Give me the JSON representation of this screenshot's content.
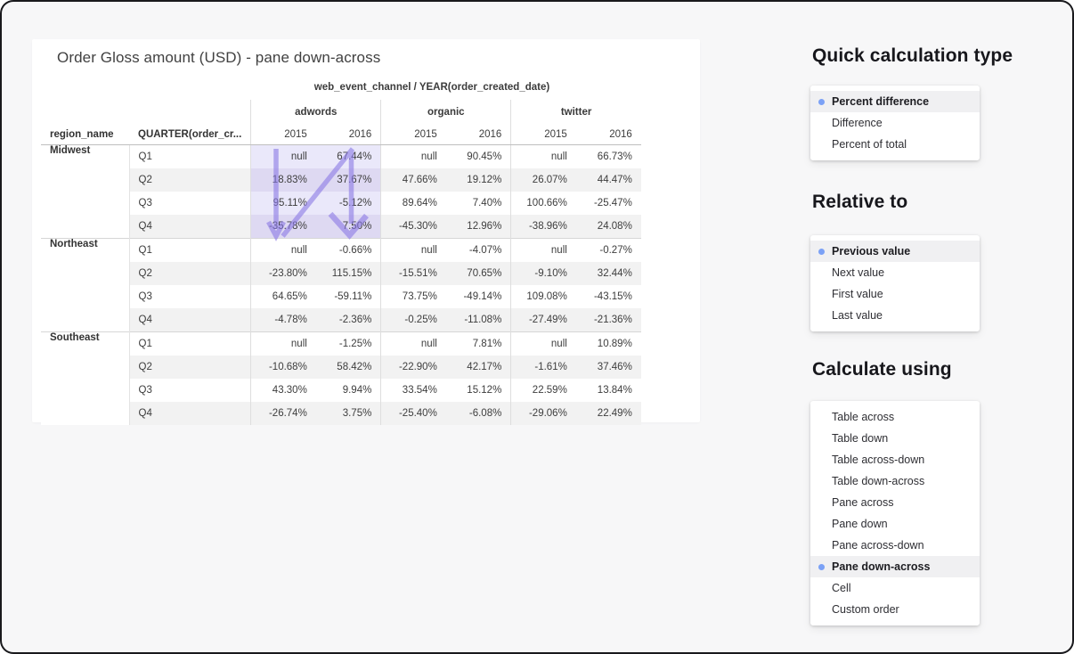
{
  "report": {
    "title": "Order Gloss amount (USD) - pane down-across"
  },
  "table": {
    "pivot_label": "web_event_channel / YEAR(order_created_date)",
    "row_headers": [
      "region_name",
      "QUARTER(order_cr..."
    ],
    "channels": [
      "adwords",
      "organic",
      "twitter"
    ],
    "years": [
      "2015",
      "2016"
    ],
    "rows": [
      {
        "region": "Midwest",
        "quarter": "Q1",
        "values": [
          "null",
          "67.44%",
          "null",
          "90.45%",
          "null",
          "66.73%"
        ]
      },
      {
        "region": "",
        "quarter": "Q2",
        "values": [
          "18.83%",
          "37.67%",
          "47.66%",
          "19.12%",
          "26.07%",
          "44.47%"
        ]
      },
      {
        "region": "",
        "quarter": "Q3",
        "values": [
          "95.11%",
          "-5.12%",
          "89.64%",
          "7.40%",
          "100.66%",
          "-25.47%"
        ]
      },
      {
        "region": "",
        "quarter": "Q4",
        "values": [
          "-35.78%",
          "7.50%",
          "-45.30%",
          "12.96%",
          "-38.96%",
          "24.08%"
        ]
      },
      {
        "region": "Northeast",
        "quarter": "Q1",
        "values": [
          "null",
          "-0.66%",
          "null",
          "-4.07%",
          "null",
          "-0.27%"
        ]
      },
      {
        "region": "",
        "quarter": "Q2",
        "values": [
          "-23.80%",
          "115.15%",
          "-15.51%",
          "70.65%",
          "-9.10%",
          "32.44%"
        ]
      },
      {
        "region": "",
        "quarter": "Q3",
        "values": [
          "64.65%",
          "-59.11%",
          "73.75%",
          "-49.14%",
          "109.08%",
          "-43.15%"
        ]
      },
      {
        "region": "",
        "quarter": "Q4",
        "values": [
          "-4.78%",
          "-2.36%",
          "-0.25%",
          "-11.08%",
          "-27.49%",
          "-21.36%"
        ]
      },
      {
        "region": "Southeast",
        "quarter": "Q1",
        "values": [
          "null",
          "-1.25%",
          "null",
          "7.81%",
          "null",
          "10.89%"
        ]
      },
      {
        "region": "",
        "quarter": "Q2",
        "values": [
          "-10.68%",
          "58.42%",
          "-22.90%",
          "42.17%",
          "-1.61%",
          "37.46%"
        ]
      },
      {
        "region": "",
        "quarter": "Q3",
        "values": [
          "43.30%",
          "9.94%",
          "33.54%",
          "15.12%",
          "22.59%",
          "13.84%"
        ]
      },
      {
        "region": "",
        "quarter": "Q4",
        "values": [
          "-26.74%",
          "3.75%",
          "-25.40%",
          "-6.08%",
          "-29.06%",
          "22.49%"
        ]
      }
    ],
    "highlight": {
      "region": "Midwest",
      "channel": "adwords"
    }
  },
  "panels": {
    "quick_calculation_type": {
      "title": "Quick calculation type",
      "options": [
        {
          "label": "Percent difference",
          "selected": true
        },
        {
          "label": "Difference",
          "selected": false
        },
        {
          "label": "Percent of total",
          "selected": false
        }
      ]
    },
    "relative_to": {
      "title": "Relative to",
      "options": [
        {
          "label": "Previous value",
          "selected": true
        },
        {
          "label": "Next value",
          "selected": false
        },
        {
          "label": "First value",
          "selected": false
        },
        {
          "label": "Last value",
          "selected": false
        }
      ]
    },
    "calculate_using": {
      "title": "Calculate using",
      "options": [
        {
          "label": "Table across",
          "selected": false
        },
        {
          "label": "Table down",
          "selected": false
        },
        {
          "label": "Table across-down",
          "selected": false
        },
        {
          "label": "Table down-across",
          "selected": false
        },
        {
          "label": "Pane across",
          "selected": false
        },
        {
          "label": "Pane down",
          "selected": false
        },
        {
          "label": "Pane across-down",
          "selected": false
        },
        {
          "label": "Pane down-across",
          "selected": true
        },
        {
          "label": "Cell",
          "selected": false
        },
        {
          "label": "Custom order",
          "selected": false
        }
      ]
    }
  },
  "colors": {
    "arrow": "#8b7ae6",
    "selection_dot": "#7ba1f6",
    "pane_highlight_light": "#eae8fa",
    "pane_highlight_dark": "#ded9f2",
    "row_stripe": "#f2f2f2"
  }
}
